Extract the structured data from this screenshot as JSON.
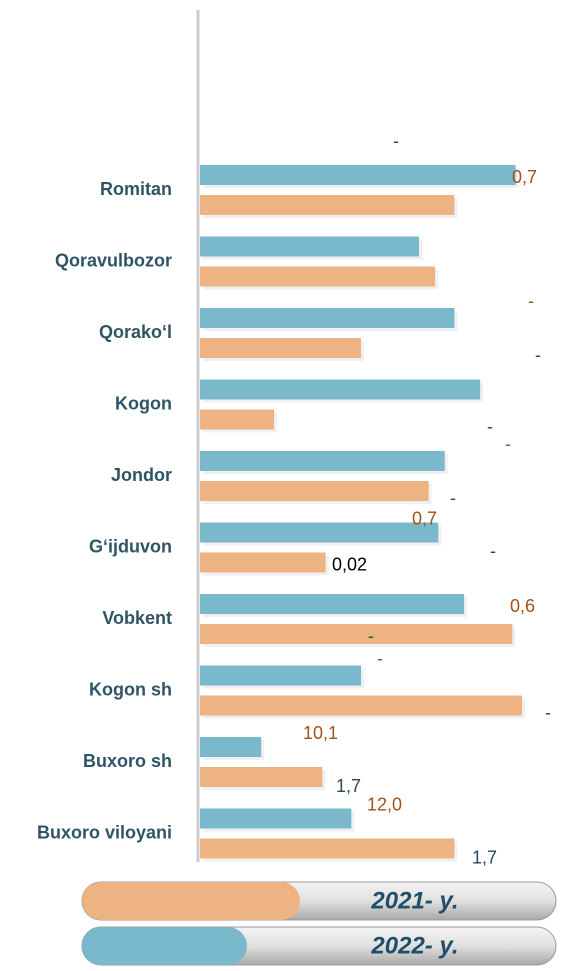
{
  "chart_data": {
    "type": "bar",
    "orientation": "horizontal",
    "categories": [
      "Romitan",
      "Qoravulbozor",
      "Qorako‘l",
      "Kogon",
      "Jondor",
      "G‘ijduvon",
      "Vobkent",
      "Kogon sh",
      "Buxoro sh",
      "Buxoro viloyani"
    ],
    "xlim": [
      0,
      100
    ],
    "series": [
      {
        "name": "2022- y.",
        "color": "#7ab8cc",
        "values": [
          98,
          68,
          79,
          87,
          76,
          74,
          82,
          50,
          19,
          47
        ],
        "labels": [
          "0,7",
          null,
          "-",
          null,
          "-",
          "0,7",
          "0,6",
          "-",
          "10,1",
          "12,0"
        ]
      },
      {
        "name": "2021- y.",
        "color": "#edb383",
        "values": [
          79,
          73,
          50,
          23,
          71,
          39,
          97,
          100,
          38,
          79
        ],
        "labels": [
          null,
          null,
          "-",
          "-",
          "-",
          "0,02",
          "-",
          "-",
          "1,7",
          "1,7"
        ]
      }
    ],
    "annotations": [
      "-",
      "-"
    ]
  }
}
